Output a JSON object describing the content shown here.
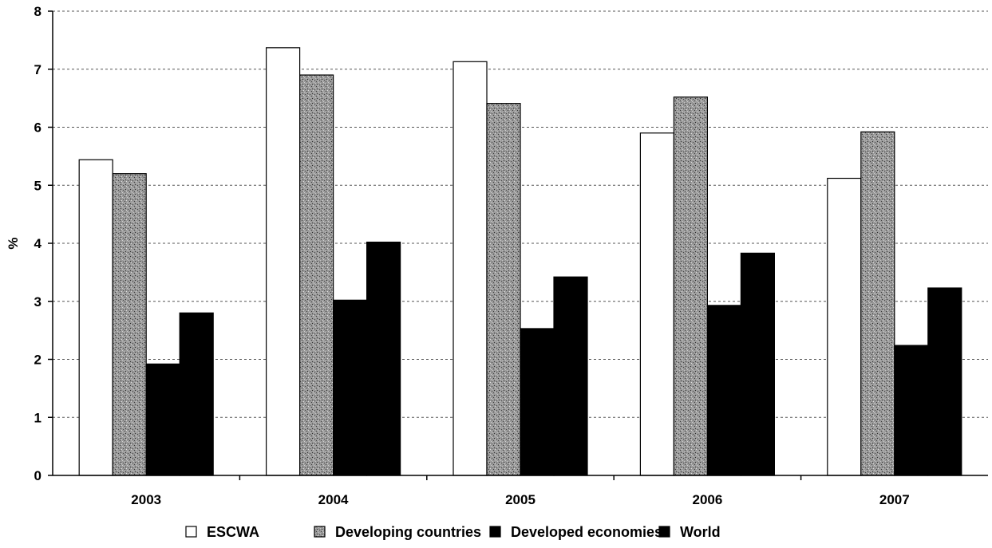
{
  "chart_data": {
    "type": "bar",
    "title": "",
    "xlabel": "",
    "ylabel": "%",
    "ylim": [
      0,
      8
    ],
    "yticks": [
      0,
      1,
      2,
      3,
      4,
      5,
      6,
      7,
      8
    ],
    "grid": true,
    "legend_position": "bottom",
    "categories": [
      "2003",
      "2004",
      "2005",
      "2006",
      "2007"
    ],
    "series": [
      {
        "name": "ESCWA",
        "color": "#ffffff",
        "pattern": "none",
        "values": [
          5.44,
          7.37,
          7.13,
          5.9,
          5.12
        ]
      },
      {
        "name": "Developing countries",
        "color": "#8c8c8c",
        "pattern": "speckled",
        "values": [
          5.2,
          6.9,
          6.41,
          6.52,
          5.92
        ]
      },
      {
        "name": "Developed economies",
        "color": "#000000",
        "pattern": "none",
        "values": [
          1.92,
          3.02,
          2.53,
          2.93,
          2.24
        ]
      },
      {
        "name": "World",
        "color": "#000000",
        "pattern": "none",
        "values": [
          2.8,
          4.02,
          3.42,
          3.83,
          3.23
        ]
      }
    ]
  }
}
